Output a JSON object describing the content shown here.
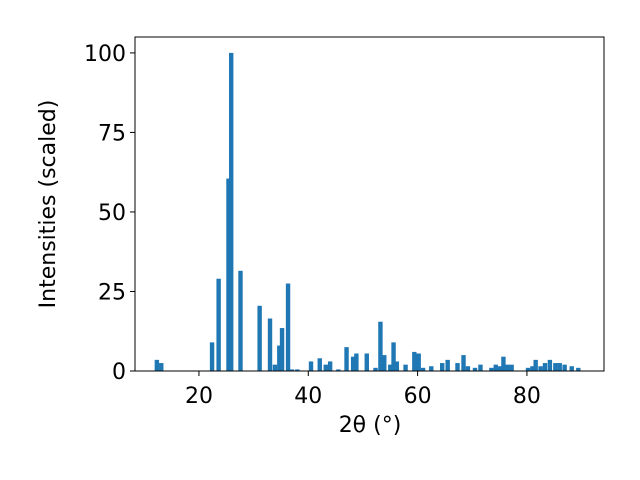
{
  "chart_data": {
    "type": "bar",
    "x_label": "2θ (°)",
    "y_label": "Intensities (scaled)",
    "color": "#1f77b4",
    "x": [
      12.3,
      13.1,
      22.4,
      23.6,
      25.4,
      25.9,
      27.6,
      31.1,
      33.0,
      33.9,
      34.7,
      35.2,
      36.3,
      37.0,
      38.0,
      40.5,
      42.1,
      43.2,
      44.0,
      45.5,
      47.0,
      48.2,
      48.8,
      50.7,
      52.3,
      53.2,
      53.9,
      55.0,
      55.6,
      56.2,
      57.8,
      59.4,
      60.2,
      61.0,
      62.5,
      64.5,
      65.5,
      67.3,
      68.4,
      69.2,
      70.5,
      71.5,
      73.5,
      74.3,
      75.1,
      75.7,
      76.4,
      77.2,
      80.2,
      81.0,
      81.6,
      82.5,
      83.3,
      84.2,
      85.2,
      86.0,
      86.9,
      88.2,
      89.4
    ],
    "values": [
      3.5,
      2.5,
      9,
      29,
      60.5,
      100,
      31.5,
      20.5,
      16.5,
      2,
      8,
      13.5,
      27.5,
      0.5,
      0.5,
      3,
      4,
      2,
      3,
      0.5,
      7.5,
      4.5,
      5.5,
      5.5,
      1,
      15.5,
      5,
      2,
      9,
      3,
      2,
      6,
      5.5,
      1,
      1.5,
      2.5,
      3.5,
      2.5,
      5,
      1.5,
      1,
      2,
      1,
      2,
      1.5,
      4.5,
      2,
      2,
      1,
      1.5,
      3.5,
      1.5,
      2.5,
      3.5,
      2.5,
      2.5,
      2,
      1.5,
      1
    ],
    "xlim": [
      8.3,
      94.1
    ],
    "xticks": [
      20,
      40,
      60,
      80
    ],
    "ylim": [
      0,
      105
    ],
    "yticks": [
      0,
      25,
      50,
      75,
      100
    ]
  }
}
